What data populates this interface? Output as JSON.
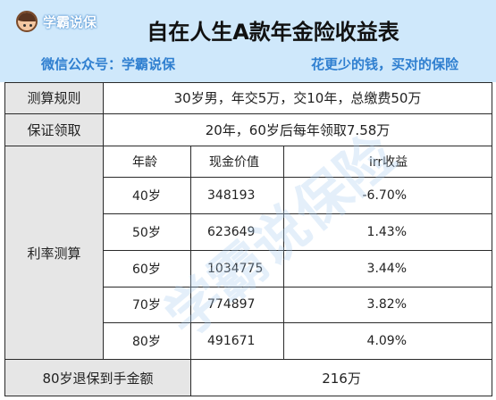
{
  "header": {
    "logo_text": "学霸说保",
    "title": "自在人生A款年金险收益表",
    "subtitle_left": "微信公众号：学霸说保",
    "subtitle_right": "花更少的钱，买对的保险"
  },
  "watermark": "学霸说保险",
  "colors": {
    "header_bg": "#cfe8fb",
    "accent_blue": "#2f7fd0",
    "label_bg": "#e6e6e6"
  },
  "rows": {
    "calc_rule": {
      "label": "测算规则",
      "value": "30岁男，年交5万，交10年，总缴费50万"
    },
    "guaranteed": {
      "label": "保证领取",
      "value": "20年，60岁后每年领取7.58万"
    },
    "rate_calc": {
      "label": "利率测算",
      "headers": [
        "年龄",
        "现金价值",
        "irr收益"
      ],
      "data": [
        {
          "age": "40岁",
          "cash_value": "348193",
          "irr": "-6.70%"
        },
        {
          "age": "50岁",
          "cash_value": "623649",
          "irr": "1.43%"
        },
        {
          "age": "60岁",
          "cash_value": "1034775",
          "irr": "3.44%"
        },
        {
          "age": "70岁",
          "cash_value": "774897",
          "irr": "3.82%"
        },
        {
          "age": "80岁",
          "cash_value": "491671",
          "irr": "4.09%"
        }
      ]
    },
    "surrender": {
      "label": "80岁退保到手金额",
      "value": "216万"
    }
  }
}
